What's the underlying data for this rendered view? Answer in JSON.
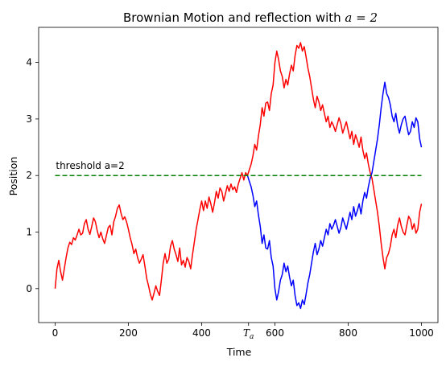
{
  "chart_data": {
    "type": "line",
    "title": "Brownian Motion and reflection with ",
    "title_math": "a = 2",
    "xlabel": "Time",
    "ylabel": "Position",
    "xlim": [
      -45,
      1045
    ],
    "ylim": [
      -0.6,
      4.62
    ],
    "xticks": [
      0,
      200,
      400,
      600,
      800,
      1000
    ],
    "yticks": [
      0,
      1,
      2,
      3,
      4
    ],
    "special_xtick": {
      "x": 528,
      "base": "T",
      "sub": "a"
    },
    "threshold": {
      "y": 2,
      "x_range": [
        0,
        1000
      ],
      "color": "#008000",
      "style": "dashed"
    },
    "annotation": {
      "text": "threshold a=2",
      "x": 2,
      "y": 2.12
    },
    "grid": false,
    "legend": "none",
    "series": [
      {
        "color": "#ff0000",
        "points": [
          [
            0,
            0.0
          ],
          [
            5,
            0.35
          ],
          [
            10,
            0.5
          ],
          [
            15,
            0.3
          ],
          [
            20,
            0.15
          ],
          [
            25,
            0.35
          ],
          [
            30,
            0.55
          ],
          [
            35,
            0.72
          ],
          [
            40,
            0.82
          ],
          [
            45,
            0.78
          ],
          [
            50,
            0.9
          ],
          [
            55,
            0.86
          ],
          [
            60,
            0.95
          ],
          [
            65,
            1.05
          ],
          [
            70,
            0.95
          ],
          [
            75,
            0.98
          ],
          [
            80,
            1.15
          ],
          [
            85,
            1.22
          ],
          [
            90,
            1.05
          ],
          [
            95,
            0.96
          ],
          [
            100,
            1.1
          ],
          [
            105,
            1.25
          ],
          [
            110,
            1.18
          ],
          [
            115,
            1.02
          ],
          [
            120,
            0.9
          ],
          [
            125,
            1.0
          ],
          [
            130,
            0.88
          ],
          [
            135,
            0.8
          ],
          [
            140,
            0.94
          ],
          [
            145,
            1.08
          ],
          [
            150,
            1.12
          ],
          [
            155,
            0.95
          ],
          [
            160,
            1.18
          ],
          [
            165,
            1.28
          ],
          [
            170,
            1.42
          ],
          [
            175,
            1.48
          ],
          [
            180,
            1.33
          ],
          [
            185,
            1.22
          ],
          [
            190,
            1.27
          ],
          [
            195,
            1.18
          ],
          [
            200,
            1.05
          ],
          [
            205,
            0.9
          ],
          [
            210,
            0.78
          ],
          [
            215,
            0.62
          ],
          [
            220,
            0.7
          ],
          [
            225,
            0.55
          ],
          [
            230,
            0.45
          ],
          [
            235,
            0.52
          ],
          [
            240,
            0.6
          ],
          [
            245,
            0.4
          ],
          [
            250,
            0.18
          ],
          [
            255,
            0.05
          ],
          [
            260,
            -0.1
          ],
          [
            265,
            -0.2
          ],
          [
            270,
            -0.08
          ],
          [
            275,
            0.05
          ],
          [
            280,
            -0.05
          ],
          [
            285,
            -0.12
          ],
          [
            290,
            0.15
          ],
          [
            295,
            0.45
          ],
          [
            300,
            0.62
          ],
          [
            305,
            0.45
          ],
          [
            310,
            0.52
          ],
          [
            315,
            0.75
          ],
          [
            320,
            0.85
          ],
          [
            325,
            0.7
          ],
          [
            330,
            0.6
          ],
          [
            335,
            0.48
          ],
          [
            340,
            0.72
          ],
          [
            345,
            0.42
          ],
          [
            350,
            0.5
          ],
          [
            355,
            0.38
          ],
          [
            360,
            0.55
          ],
          [
            365,
            0.48
          ],
          [
            370,
            0.35
          ],
          [
            375,
            0.6
          ],
          [
            380,
            0.82
          ],
          [
            385,
            1.05
          ],
          [
            390,
            1.22
          ],
          [
            395,
            1.4
          ],
          [
            400,
            1.55
          ],
          [
            405,
            1.38
          ],
          [
            410,
            1.55
          ],
          [
            415,
            1.42
          ],
          [
            420,
            1.62
          ],
          [
            425,
            1.5
          ],
          [
            430,
            1.35
          ],
          [
            435,
            1.52
          ],
          [
            440,
            1.72
          ],
          [
            445,
            1.6
          ],
          [
            450,
            1.78
          ],
          [
            455,
            1.72
          ],
          [
            460,
            1.55
          ],
          [
            465,
            1.68
          ],
          [
            470,
            1.82
          ],
          [
            475,
            1.72
          ],
          [
            480,
            1.85
          ],
          [
            485,
            1.75
          ],
          [
            490,
            1.8
          ],
          [
            495,
            1.7
          ],
          [
            500,
            1.85
          ],
          [
            505,
            1.95
          ],
          [
            510,
            2.05
          ],
          [
            515,
            1.92
          ],
          [
            520,
            2.05
          ],
          [
            525,
            2.0
          ],
          [
            530,
            2.1
          ],
          [
            535,
            2.2
          ],
          [
            540,
            2.35
          ],
          [
            545,
            2.55
          ],
          [
            550,
            2.45
          ],
          [
            555,
            2.7
          ],
          [
            560,
            2.9
          ],
          [
            565,
            3.2
          ],
          [
            570,
            3.05
          ],
          [
            575,
            3.28
          ],
          [
            580,
            3.3
          ],
          [
            585,
            3.15
          ],
          [
            590,
            3.45
          ],
          [
            595,
            3.6
          ],
          [
            600,
            4.0
          ],
          [
            605,
            4.2
          ],
          [
            610,
            4.05
          ],
          [
            615,
            3.85
          ],
          [
            620,
            3.75
          ],
          [
            625,
            3.55
          ],
          [
            630,
            3.7
          ],
          [
            635,
            3.6
          ],
          [
            640,
            3.8
          ],
          [
            645,
            3.95
          ],
          [
            650,
            3.85
          ],
          [
            655,
            4.12
          ],
          [
            660,
            4.3
          ],
          [
            665,
            4.25
          ],
          [
            670,
            4.35
          ],
          [
            675,
            4.2
          ],
          [
            680,
            4.28
          ],
          [
            685,
            4.1
          ],
          [
            690,
            3.9
          ],
          [
            695,
            3.75
          ],
          [
            700,
            3.55
          ],
          [
            705,
            3.35
          ],
          [
            710,
            3.2
          ],
          [
            715,
            3.4
          ],
          [
            720,
            3.3
          ],
          [
            725,
            3.15
          ],
          [
            730,
            3.25
          ],
          [
            735,
            3.1
          ],
          [
            740,
            2.95
          ],
          [
            745,
            3.05
          ],
          [
            750,
            2.85
          ],
          [
            755,
            2.95
          ],
          [
            760,
            2.88
          ],
          [
            765,
            2.78
          ],
          [
            770,
            2.9
          ],
          [
            775,
            3.02
          ],
          [
            780,
            2.92
          ],
          [
            785,
            2.75
          ],
          [
            790,
            2.85
          ],
          [
            795,
            2.95
          ],
          [
            800,
            2.8
          ],
          [
            805,
            2.65
          ],
          [
            810,
            2.78
          ],
          [
            815,
            2.55
          ],
          [
            820,
            2.72
          ],
          [
            825,
            2.62
          ],
          [
            830,
            2.5
          ],
          [
            835,
            2.68
          ],
          [
            840,
            2.45
          ],
          [
            845,
            2.3
          ],
          [
            850,
            2.4
          ],
          [
            855,
            2.2
          ],
          [
            860,
            2.05
          ],
          [
            865,
            1.95
          ],
          [
            870,
            1.75
          ],
          [
            875,
            1.55
          ],
          [
            880,
            1.35
          ],
          [
            885,
            1.1
          ],
          [
            890,
            0.8
          ],
          [
            895,
            0.55
          ],
          [
            900,
            0.35
          ],
          [
            905,
            0.55
          ],
          [
            910,
            0.62
          ],
          [
            915,
            0.75
          ],
          [
            920,
            0.95
          ],
          [
            925,
            1.05
          ],
          [
            930,
            0.9
          ],
          [
            935,
            1.12
          ],
          [
            940,
            1.25
          ],
          [
            945,
            1.1
          ],
          [
            950,
            1.0
          ],
          [
            955,
            0.95
          ],
          [
            960,
            1.12
          ],
          [
            965,
            1.28
          ],
          [
            970,
            1.22
          ],
          [
            975,
            1.05
          ],
          [
            980,
            1.15
          ],
          [
            985,
            0.98
          ],
          [
            990,
            1.05
          ],
          [
            995,
            1.35
          ],
          [
            1000,
            1.5
          ]
        ]
      },
      {
        "color": "#0000ff",
        "points": [
          [
            525,
            2.0
          ],
          [
            530,
            1.9
          ],
          [
            535,
            1.8
          ],
          [
            540,
            1.65
          ],
          [
            545,
            1.45
          ],
          [
            550,
            1.55
          ],
          [
            555,
            1.3
          ],
          [
            560,
            1.1
          ],
          [
            565,
            0.8
          ],
          [
            570,
            0.95
          ],
          [
            575,
            0.72
          ],
          [
            580,
            0.7
          ],
          [
            585,
            0.85
          ],
          [
            590,
            0.55
          ],
          [
            595,
            0.4
          ],
          [
            600,
            0.0
          ],
          [
            605,
            -0.2
          ],
          [
            610,
            -0.05
          ],
          [
            615,
            0.15
          ],
          [
            620,
            0.25
          ],
          [
            625,
            0.45
          ],
          [
            630,
            0.3
          ],
          [
            635,
            0.4
          ],
          [
            640,
            0.2
          ],
          [
            645,
            0.05
          ],
          [
            650,
            0.15
          ],
          [
            655,
            -0.12
          ],
          [
            660,
            -0.3
          ],
          [
            665,
            -0.25
          ],
          [
            670,
            -0.35
          ],
          [
            675,
            -0.2
          ],
          [
            680,
            -0.28
          ],
          [
            685,
            -0.1
          ],
          [
            690,
            0.1
          ],
          [
            695,
            0.25
          ],
          [
            700,
            0.45
          ],
          [
            705,
            0.65
          ],
          [
            710,
            0.8
          ],
          [
            715,
            0.6
          ],
          [
            720,
            0.7
          ],
          [
            725,
            0.85
          ],
          [
            730,
            0.75
          ],
          [
            735,
            0.9
          ],
          [
            740,
            1.05
          ],
          [
            745,
            0.95
          ],
          [
            750,
            1.15
          ],
          [
            755,
            1.05
          ],
          [
            760,
            1.12
          ],
          [
            765,
            1.22
          ],
          [
            770,
            1.1
          ],
          [
            775,
            0.98
          ],
          [
            780,
            1.08
          ],
          [
            785,
            1.25
          ],
          [
            790,
            1.15
          ],
          [
            795,
            1.05
          ],
          [
            800,
            1.2
          ],
          [
            805,
            1.35
          ],
          [
            810,
            1.22
          ],
          [
            815,
            1.45
          ],
          [
            820,
            1.28
          ],
          [
            825,
            1.38
          ],
          [
            830,
            1.5
          ],
          [
            835,
            1.32
          ],
          [
            840,
            1.55
          ],
          [
            845,
            1.7
          ],
          [
            850,
            1.6
          ],
          [
            855,
            1.8
          ],
          [
            860,
            1.95
          ],
          [
            865,
            2.05
          ],
          [
            870,
            2.25
          ],
          [
            875,
            2.45
          ],
          [
            880,
            2.65
          ],
          [
            885,
            2.9
          ],
          [
            890,
            3.2
          ],
          [
            895,
            3.45
          ],
          [
            900,
            3.65
          ],
          [
            905,
            3.45
          ],
          [
            910,
            3.38
          ],
          [
            915,
            3.25
          ],
          [
            920,
            3.05
          ],
          [
            925,
            2.95
          ],
          [
            930,
            3.1
          ],
          [
            935,
            2.88
          ],
          [
            940,
            2.75
          ],
          [
            945,
            2.9
          ],
          [
            950,
            3.0
          ],
          [
            955,
            3.05
          ],
          [
            960,
            2.88
          ],
          [
            965,
            2.72
          ],
          [
            970,
            2.78
          ],
          [
            975,
            2.95
          ],
          [
            980,
            2.85
          ],
          [
            985,
            3.02
          ],
          [
            990,
            2.95
          ],
          [
            995,
            2.65
          ],
          [
            1000,
            2.5
          ]
        ]
      }
    ]
  }
}
